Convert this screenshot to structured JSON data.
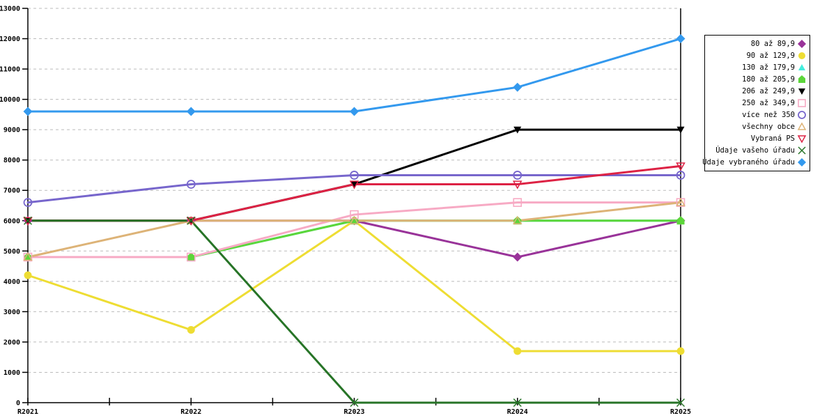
{
  "chart_data": {
    "type": "line",
    "title": "",
    "xlabel": "",
    "ylabel": "",
    "categories": [
      "R2021",
      "R2022",
      "R2023",
      "R2024",
      "R2025"
    ],
    "y_axis": {
      "min": 0,
      "max": 13000,
      "step": 1000
    },
    "grid": true,
    "legend_position": "right",
    "series": [
      {
        "name": "80 až 89,9",
        "color": "#993399",
        "marker": "filled-diamond",
        "values": [
          6000,
          6000,
          6000,
          4800,
          6000
        ]
      },
      {
        "name": "90 až 129,9",
        "color": "#EEDD33",
        "marker": "filled-circle",
        "values": [
          4200,
          2400,
          6000,
          1700,
          1700
        ]
      },
      {
        "name": "130 až 179,9",
        "color": "#44EEDD",
        "marker": "filled-triangle-up",
        "values": [
          4800,
          4800,
          6000,
          6000,
          6000
        ]
      },
      {
        "name": "180 až 205,9",
        "color": "#5CD63A",
        "marker": "filled-pentagon",
        "values": [
          4800,
          4800,
          6000,
          6000,
          6000
        ]
      },
      {
        "name": "206 až 249,9",
        "color": "#000000",
        "marker": "filled-triangle-down",
        "values": [
          6000,
          6000,
          7200,
          9000,
          9000
        ]
      },
      {
        "name": "250 až 349,9",
        "color": "#F7AAC4",
        "marker": "open-square",
        "values": [
          4800,
          4800,
          6200,
          6600,
          6600
        ]
      },
      {
        "name": "více než 350",
        "color": "#7766CC",
        "marker": "open-circle",
        "values": [
          6600,
          7200,
          7500,
          7500,
          7500
        ]
      },
      {
        "name": "všechny obce",
        "color": "#DDB377",
        "marker": "open-triangle-up",
        "values": [
          4800,
          6000,
          6000,
          6000,
          6600
        ]
      },
      {
        "name": "Vybraná PS",
        "color": "#DD2244",
        "marker": "open-triangle-down",
        "values": [
          6000,
          6000,
          7200,
          7200,
          7800
        ]
      },
      {
        "name": "Údaje vašeho úřadu",
        "color": "#277427",
        "marker": "x-cross",
        "values": [
          6000,
          6000,
          0,
          0,
          0
        ]
      },
      {
        "name": "Údaje vybraného úřadu",
        "color": "#3399EE",
        "marker": "filled-diamond",
        "values": [
          9600,
          9600,
          9600,
          10400,
          12000
        ]
      }
    ]
  }
}
